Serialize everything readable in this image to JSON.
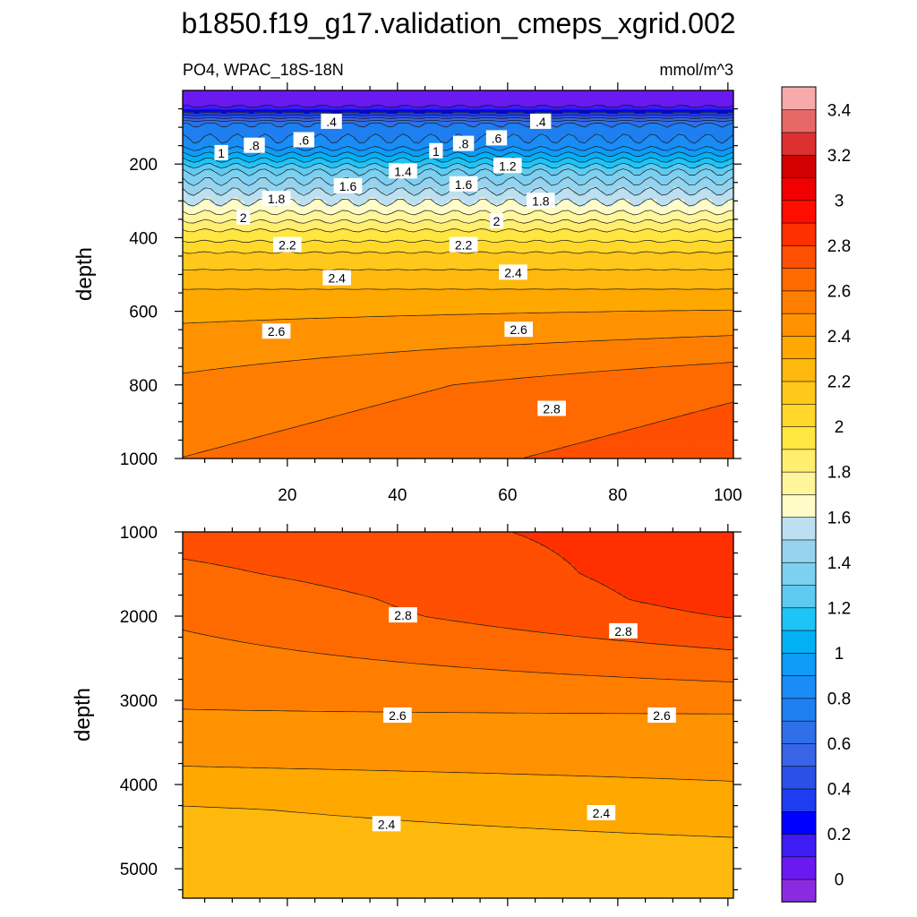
{
  "chart_data": [
    {
      "type": "contour",
      "panel": "upper",
      "title": "b1850.f19_g17.validation_cmeps_xgrid.002",
      "left_string": "PO4, WPAC_18S-18N",
      "right_string": "mmol/m^3",
      "xlabel": "",
      "ylabel": "depth",
      "xlim": [
        1,
        101
      ],
      "ylim": [
        0,
        1000
      ],
      "y_reversed": true,
      "x_ticks": [
        "20",
        "40",
        "60",
        "80",
        "100"
      ],
      "y_ticks": [
        "200",
        "400",
        "600",
        "800",
        "1000"
      ],
      "contour_labels": [
        {
          "text": ".4",
          "x": 28,
          "y": 85
        },
        {
          "text": ".4",
          "x": 66,
          "y": 85
        },
        {
          "text": ".6",
          "x": 23,
          "y": 135
        },
        {
          "text": ".6",
          "x": 58,
          "y": 130
        },
        {
          "text": ".8",
          "x": 14,
          "y": 150
        },
        {
          "text": ".8",
          "x": 52,
          "y": 145
        },
        {
          "text": "1",
          "x": 8,
          "y": 170
        },
        {
          "text": "1",
          "x": 47,
          "y": 165
        },
        {
          "text": "1.2",
          "x": 60,
          "y": 205
        },
        {
          "text": "1.4",
          "x": 41,
          "y": 220
        },
        {
          "text": "1.6",
          "x": 31,
          "y": 260
        },
        {
          "text": "1.6",
          "x": 52,
          "y": 255
        },
        {
          "text": "1.8",
          "x": 18,
          "y": 295
        },
        {
          "text": "1.8",
          "x": 66,
          "y": 300
        },
        {
          "text": "2",
          "x": 12,
          "y": 345
        },
        {
          "text": "2",
          "x": 58,
          "y": 355
        },
        {
          "text": "2.2",
          "x": 20,
          "y": 420
        },
        {
          "text": "2.2",
          "x": 52,
          "y": 420
        },
        {
          "text": "2.4",
          "x": 29,
          "y": 510
        },
        {
          "text": "2.4",
          "x": 61,
          "y": 495
        },
        {
          "text": "2.6",
          "x": 18,
          "y": 655
        },
        {
          "text": "2.6",
          "x": 62,
          "y": 650
        },
        {
          "text": "2.8",
          "x": 68,
          "y": 865
        }
      ]
    },
    {
      "type": "contour",
      "panel": "lower",
      "xlabel": "",
      "ylabel": "depth",
      "xlim": [
        1,
        101
      ],
      "ylim": [
        1000,
        5350
      ],
      "y_reversed": true,
      "y_ticks": [
        "1000",
        "2000",
        "3000",
        "4000",
        "5000"
      ],
      "contour_labels": [
        {
          "text": "2.8",
          "x": 41,
          "y": 1990
        },
        {
          "text": "2.8",
          "x": 81,
          "y": 2180
        },
        {
          "text": "2.6",
          "x": 40,
          "y": 3180
        },
        {
          "text": "2.6",
          "x": 88,
          "y": 3180
        },
        {
          "text": "2.4",
          "x": 38,
          "y": 4470
        },
        {
          "text": "2.4",
          "x": 77,
          "y": 4340
        }
      ]
    }
  ],
  "colorbar": {
    "levels": [
      0,
      0.1,
      0.2,
      0.3,
      0.4,
      0.5,
      0.6,
      0.7,
      0.8,
      0.9,
      1.0,
      1.1,
      1.2,
      1.3,
      1.4,
      1.5,
      1.6,
      1.7,
      1.8,
      1.9,
      2.0,
      2.1,
      2.2,
      2.3,
      2.4,
      2.5,
      2.6,
      2.7,
      2.8,
      2.9,
      3.0,
      3.1,
      3.2,
      3.3,
      3.4,
      3.5
    ],
    "tick_labels": [
      "0",
      "0.2",
      "0.4",
      "0.6",
      "0.8",
      "1",
      "1.2",
      "1.4",
      "1.6",
      "1.8",
      "2",
      "2.2",
      "2.4",
      "2.6",
      "2.8",
      "3",
      "3.2",
      "3.4"
    ],
    "colors": [
      "#8a2be2",
      "#6a1af0",
      "#3d1cf5",
      "#0000ff",
      "#1e3cf0",
      "#2a50e8",
      "#3765e6",
      "#2f6fe8",
      "#1e7ff0",
      "#1a8cf5",
      "#0e9bf8",
      "#02b1f5",
      "#1ec4f5",
      "#5ecaf2",
      "#7dd0ef",
      "#96d3ee",
      "#bde0f0",
      "#fffcc8",
      "#fff59a",
      "#ffee70",
      "#ffe640",
      "#ffd82a",
      "#ffc81a",
      "#ffb80c",
      "#ffa800",
      "#ff9200",
      "#ff7e00",
      "#ff6a00",
      "#ff4f00",
      "#ff3000",
      "#ff0e00",
      "#f00000",
      "#d20000",
      "#dc3030",
      "#e86868",
      "#f7aaaa"
    ]
  }
}
